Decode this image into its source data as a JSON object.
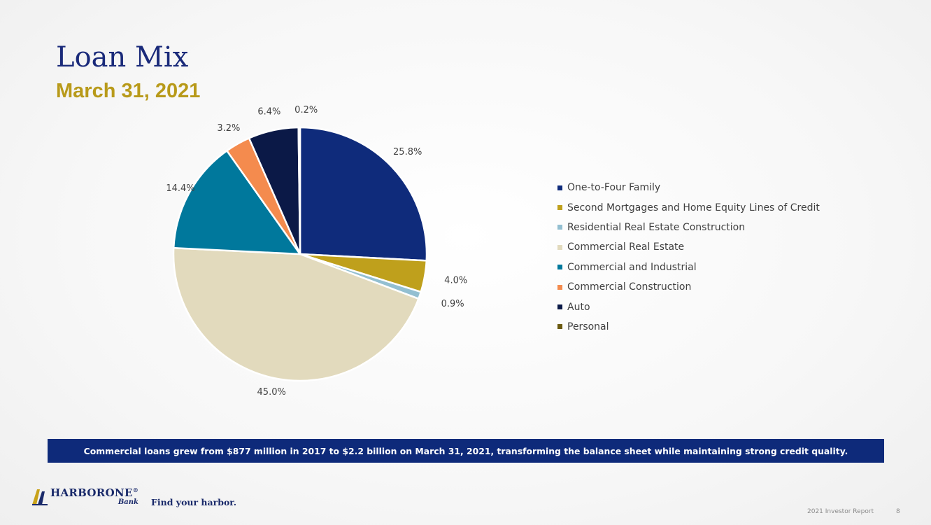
{
  "slide": {
    "title": "Loan Mix",
    "subtitle": "March 31, 2021",
    "banner_text": "Commercial loans grew from $877 million in 2017 to $2.2 billion on March 31, 2021, transforming the balance sheet while maintaining strong credit quality."
  },
  "brand": {
    "name": "HARBORONE",
    "registered_mark": "®",
    "sub": "Bank",
    "tagline": "Find your harbor.",
    "icon": "harborone-logo-icon"
  },
  "footer": {
    "report": "2021 Investor Report",
    "page": "8"
  },
  "chart_data": {
    "type": "pie",
    "title": "",
    "categories": [
      "One-to-Four Family",
      "Second Mortgages and Home Equity Lines of Credit",
      "Residential Real Estate Construction",
      "Commercial Real Estate",
      "Commercial and Industrial",
      "Commercial Construction",
      "Auto",
      "Personal"
    ],
    "values": [
      25.8,
      4.0,
      0.9,
      45.0,
      14.4,
      3.2,
      6.4,
      0.2
    ],
    "value_labels": [
      "25.8%",
      "4.0%",
      "0.9%",
      "45.0%",
      "14.4%",
      "3.2%",
      "6.4%",
      "0.2%"
    ],
    "colors": [
      "#0f2b7b",
      "#bfa01c",
      "#93bfd1",
      "#e2dabd",
      "#00789c",
      "#f48b4e",
      "#0b1947",
      "#6b5a10"
    ],
    "legend_position": "right",
    "start_angle_deg": 0,
    "direction": "clockwise"
  }
}
